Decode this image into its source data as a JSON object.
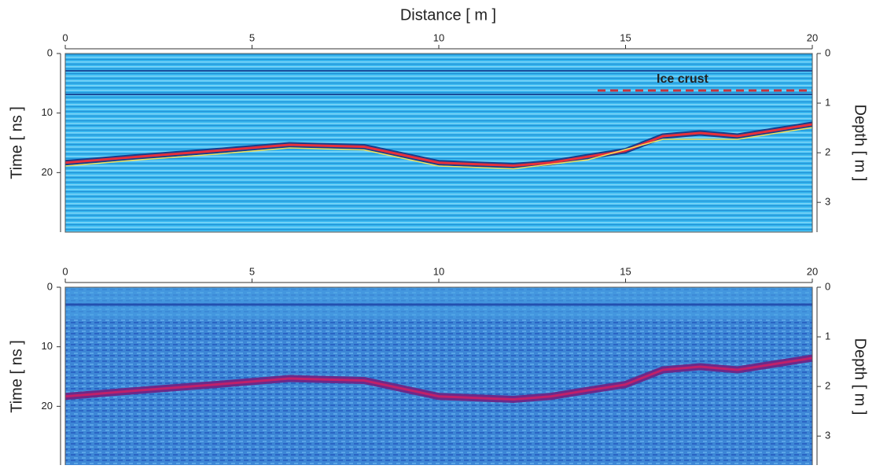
{
  "chart_data": [
    {
      "type": "radargram",
      "title": "Distance [ m ]",
      "ylabel": "Time [ ns ]",
      "y2label": "Depth [ m ]",
      "annotation": "Ice crust",
      "xlim": [
        0,
        20
      ],
      "xticks": [
        0,
        5,
        10,
        15,
        20
      ],
      "ylim": [
        0,
        30
      ],
      "yticks": [
        0,
        10,
        20
      ],
      "y2lim": [
        0,
        3.6
      ],
      "y2ticks": [
        0,
        1,
        2,
        3
      ],
      "invert_y": true
    },
    {
      "type": "radargram",
      "ylabel": "Time [ ns ]",
      "y2label": "Depth [ m ]",
      "xlim": [
        0,
        20
      ],
      "xticks": [
        0,
        5,
        10,
        15,
        20
      ],
      "ylim": [
        0,
        30
      ],
      "yticks": [
        0,
        10,
        20
      ],
      "y2lim": [
        0,
        3.6
      ],
      "y2ticks": [
        0,
        1,
        2,
        3
      ],
      "invert_y": true
    }
  ]
}
